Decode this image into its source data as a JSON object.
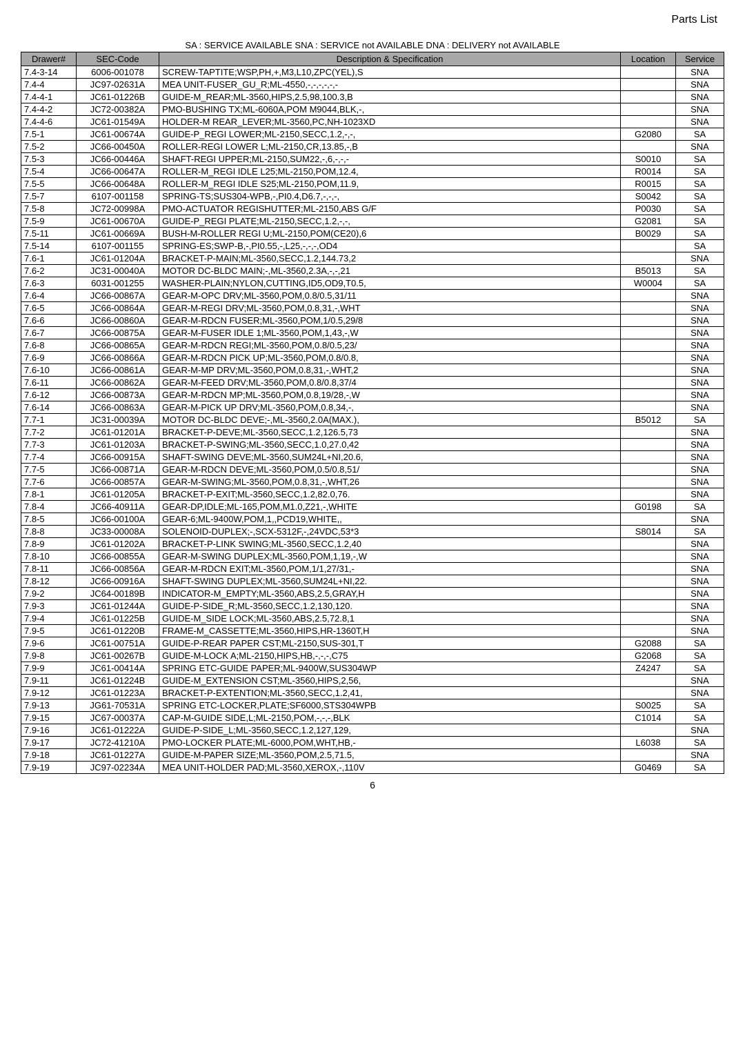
{
  "header": {
    "title": "Parts List"
  },
  "legend": "SA : SERVICE  AVAILABLE    SNA   : SERVICE   not  AVAILABLE    DNA  :   DELIVERY    not  AVAILABLE",
  "table": {
    "columns": [
      "Drawer#",
      "SEC-Code",
      "Description & Specification",
      "Location",
      "Service"
    ],
    "rows": [
      [
        "7.4-3-14",
        "6006-001078",
        "SCREW-TAPTITE;WSP,PH,+,M3,L10,ZPC(YEL),S",
        "",
        "SNA"
      ],
      [
        "7.4-4",
        "JC97-02631A",
        "MEA UNIT-FUSER_GU_R;ML-4550,-,-,-,-,-,-",
        "",
        "SNA"
      ],
      [
        "7.4-4-1",
        "JC61-01226B",
        "GUIDE-M_REAR;ML-3560,HIPS,2.5,98,100.3,B",
        "",
        "SNA"
      ],
      [
        "7.4-4-2",
        "JC72-00382A",
        "PMO-BUSHING TX;ML-6060A,POM M9044,BLK,-,",
        "",
        "SNA"
      ],
      [
        "7.4-4-6",
        "JC61-01549A",
        "HOLDER-M REAR_LEVER;ML-3560,PC,NH-1023XD",
        "",
        "SNA"
      ],
      [
        "7.5-1",
        "JC61-00674A",
        "GUIDE-P_REGI LOWER;ML-2150,SECC,1.2,-,-,",
        "G2080",
        "SA"
      ],
      [
        "7.5-2",
        "JC66-00450A",
        "ROLLER-REGI LOWER L;ML-2150,CR,13.85,-,B",
        "",
        "SNA"
      ],
      [
        "7.5-3",
        "JC66-00446A",
        "SHAFT-REGI UPPER;ML-2150,SUM22,-,6,-,-,-",
        "S0010",
        "SA"
      ],
      [
        "7.5-4",
        "JC66-00647A",
        "ROLLER-M_REGI IDLE L25;ML-2150,POM,12.4,",
        "R0014",
        "SA"
      ],
      [
        "7.5-5",
        "JC66-00648A",
        "ROLLER-M_REGI IDLE S25;ML-2150,POM,11.9,",
        "R0015",
        "SA"
      ],
      [
        "7.5-7",
        "6107-001158",
        "SPRING-TS;SUS304-WPB,-,PI0.4,D6.7,-,-,-,",
        "S0042",
        "SA"
      ],
      [
        "7.5-8",
        "JC72-00998A",
        "PMO-ACTUATOR REGISHUTTER;ML-2150,ABS G/F",
        "P0030",
        "SA"
      ],
      [
        "7.5-9",
        "JC61-00670A",
        "GUIDE-P_REGI PLATE;ML-2150,SECC,1.2,-,-,",
        "G2081",
        "SA"
      ],
      [
        "7.5-11",
        "JC61-00669A",
        "BUSH-M-ROLLER REGI U;ML-2150,POM(CE20),6",
        "B0029",
        "SA"
      ],
      [
        "7.5-14",
        "6107-001155",
        "SPRING-ES;SWP-B,-,PI0.55,-,L25,-,-,-,OD4",
        "",
        "SA"
      ],
      [
        "7.6-1",
        "JC61-01204A",
        "BRACKET-P-MAIN;ML-3560,SECC,1.2,144.73,2",
        "",
        "SNA"
      ],
      [
        "7.6-2",
        "JC31-00040A",
        "MOTOR DC-BLDC MAIN;-,ML-3560,2.3A,-,-,21",
        "B5013",
        "SA"
      ],
      [
        "7.6-3",
        "6031-001255",
        "WASHER-PLAIN;NYLON,CUTTING,ID5,OD9,T0.5,",
        "W0004",
        "SA"
      ],
      [
        "7.6-4",
        "JC66-00867A",
        "GEAR-M-OPC DRV;ML-3560,POM,0.8/0.5,31/11",
        "",
        "SNA"
      ],
      [
        "7.6-5",
        "JC66-00864A",
        "GEAR-M-REGI DRV;ML-3560,POM,0.8,31,-,WHT",
        "",
        "SNA"
      ],
      [
        "7.6-6",
        "JC66-00860A",
        "GEAR-M-RDCN FUSER;ML-3560,POM,1/0.5,29/8",
        "",
        "SNA"
      ],
      [
        "7.6-7",
        "JC66-00875A",
        "GEAR-M-FUSER IDLE 1;ML-3560,POM,1,43,-,W",
        "",
        "SNA"
      ],
      [
        "7.6-8",
        "JC66-00865A",
        "GEAR-M-RDCN REGI;ML-3560,POM,0.8/0.5,23/",
        "",
        "SNA"
      ],
      [
        "7.6-9",
        "JC66-00866A",
        "GEAR-M-RDCN PICK UP;ML-3560,POM,0.8/0.8,",
        "",
        "SNA"
      ],
      [
        "7.6-10",
        "JC66-00861A",
        "GEAR-M-MP DRV;ML-3560,POM,0.8,31,-,WHT,2",
        "",
        "SNA"
      ],
      [
        "7.6-11",
        "JC66-00862A",
        "GEAR-M-FEED DRV;ML-3560,POM,0.8/0.8,37/4",
        "",
        "SNA"
      ],
      [
        "7.6-12",
        "JC66-00873A",
        "GEAR-M-RDCN MP;ML-3560,POM,0.8,19/28,-,W",
        "",
        "SNA"
      ],
      [
        "7.6-14",
        "JC66-00863A",
        "GEAR-M-PICK UP DRV;ML-3560,POM,0.8,34,-,",
        "",
        "SNA"
      ],
      [
        "7.7-1",
        "JC31-00039A",
        "MOTOR DC-BLDC DEVE;-,ML-3560,2.0A(MAX.),",
        "B5012",
        "SA"
      ],
      [
        "7.7-2",
        "JC61-01201A",
        "BRACKET-P-DEVE;ML-3560,SECC,1.2,126.5,73",
        "",
        "SNA"
      ],
      [
        "7.7-3",
        "JC61-01203A",
        "BRACKET-P-SWING;ML-3560,SECC,1.0,27.0,42",
        "",
        "SNA"
      ],
      [
        "7.7-4",
        "JC66-00915A",
        "SHAFT-SWING DEVE;ML-3560,SUM24L+NI,20.6,",
        "",
        "SNA"
      ],
      [
        "7.7-5",
        "JC66-00871A",
        "GEAR-M-RDCN DEVE;ML-3560,POM,0.5/0.8,51/",
        "",
        "SNA"
      ],
      [
        "7.7-6",
        "JC66-00857A",
        "GEAR-M-SWING;ML-3560,POM,0.8,31,-,WHT,26",
        "",
        "SNA"
      ],
      [
        "7.8-1",
        "JC61-01205A",
        "BRACKET-P-EXIT;ML-3560,SECC,1.2,82.0,76.",
        "",
        "SNA"
      ],
      [
        "7.8-4",
        "JC66-40911A",
        "GEAR-DP,IDLE;ML-165,POM,M1.0,Z21,-,WHITE",
        "G0198",
        "SA"
      ],
      [
        "7.8-5",
        "JC66-00100A",
        "GEAR-6;ML-9400W,POM,1,,PCD19,WHITE,,",
        "",
        "SNA"
      ],
      [
        "7.8-8",
        "JC33-00008A",
        "SOLENOID-DUPLEX;-,SCX-5312F,-,24VDC,53*3",
        "S8014",
        "SA"
      ],
      [
        "7.8-9",
        "JC61-01202A",
        "BRACKET-P-LINK SWING;ML-3560,SECC,1.2,40",
        "",
        "SNA"
      ],
      [
        "7.8-10",
        "JC66-00855A",
        "GEAR-M-SWING DUPLEX;ML-3560,POM,1,19,-,W",
        "",
        "SNA"
      ],
      [
        "7.8-11",
        "JC66-00856A",
        "GEAR-M-RDCN EXIT;ML-3560,POM,1/1,27/31,-",
        "",
        "SNA"
      ],
      [
        "7.8-12",
        "JC66-00916A",
        "SHAFT-SWING DUPLEX;ML-3560,SUM24L+NI,22.",
        "",
        "SNA"
      ],
      [
        "7.9-2",
        "JC64-00189B",
        "INDICATOR-M_EMPTY;ML-3560,ABS,2.5,GRAY,H",
        "",
        "SNA"
      ],
      [
        "7.9-3",
        "JC61-01244A",
        "GUIDE-P-SIDE_R;ML-3560,SECC,1.2,130,120.",
        "",
        "SNA"
      ],
      [
        "7.9-4",
        "JC61-01225B",
        "GUIDE-M_SIDE LOCK;ML-3560,ABS,2.5,72.8,1",
        "",
        "SNA"
      ],
      [
        "7.9-5",
        "JC61-01220B",
        "FRAME-M_CASSETTE;ML-3560,HIPS,HR-1360T,H",
        "",
        "SNA"
      ],
      [
        "7.9-6",
        "JC61-00751A",
        "GUIDE-P-REAR PAPER CST;ML-2150,SUS-301,T",
        "G2088",
        "SA"
      ],
      [
        "7.9-8",
        "JC61-00267B",
        "GUIDE-M-LOCK A;ML-2150,HIPS,HB,-,-,-,C75",
        "G2068",
        "SA"
      ],
      [
        "7.9-9",
        "JC61-00414A",
        "SPRING ETC-GUIDE PAPER;ML-9400W,SUS304WP",
        "Z4247",
        "SA"
      ],
      [
        "7.9-11",
        "JC61-01224B",
        "GUIDE-M_EXTENSION CST;ML-3560,HIPS,2,56,",
        "",
        "SNA"
      ],
      [
        "7.9-12",
        "JC61-01223A",
        "BRACKET-P-EXTENTION;ML-3560,SECC,1.2,41,",
        "",
        "SNA"
      ],
      [
        "7.9-13",
        "JG61-70531A",
        "SPRING ETC-LOCKER,PLATE;SF6000,STS304WPB",
        "S0025",
        "SA"
      ],
      [
        "7.9-15",
        "JC67-00037A",
        "CAP-M-GUIDE SIDE,L;ML-2150,POM,-,-,-,BLK",
        "C1014",
        "SA"
      ],
      [
        "7.9-16",
        "JC61-01222A",
        "GUIDE-P-SIDE_L;ML-3560,SECC,1.2,127,129,",
        "",
        "SNA"
      ],
      [
        "7.9-17",
        "JC72-41210A",
        "PMO-LOCKER PLATE;ML-6000,POM,WHT,HB,-",
        "L6038",
        "SA"
      ],
      [
        "7.9-18",
        "JC61-01227A",
        "GUIDE-M-PAPER SIZE;ML-3560,POM,2.5,71.5,",
        "",
        "SNA"
      ],
      [
        "7.9-19",
        "JC97-02234A",
        "MEA UNIT-HOLDER PAD;ML-3560,XEROX,-,110V",
        "G0469",
        "SA"
      ]
    ]
  },
  "pageNumber": "6"
}
